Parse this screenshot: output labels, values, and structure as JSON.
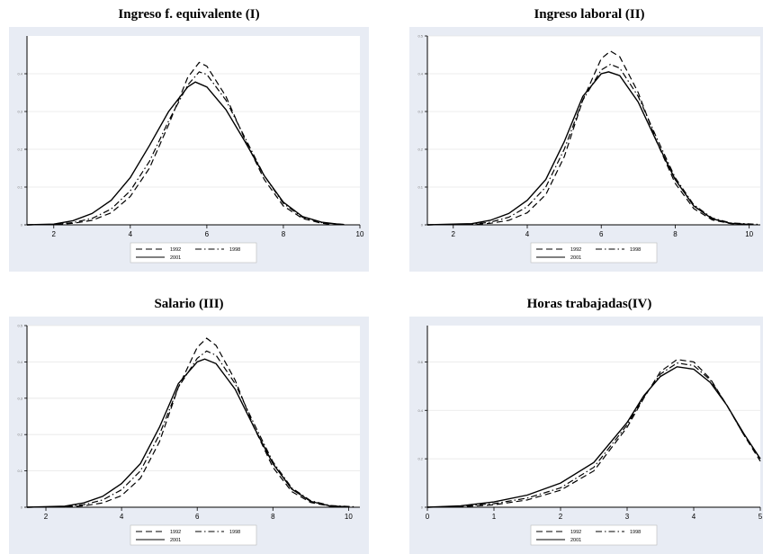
{
  "colors": {
    "panel": "#e8ecf4",
    "plot": "#ffffff",
    "line": "#000000"
  },
  "legend_labels": [
    "1992",
    "1998",
    "2001"
  ],
  "chart_data": [
    {
      "type": "line",
      "title": "Ingreso f. equivalente (I)",
      "xlim": [
        1.3,
        10
      ],
      "ylim": [
        0,
        0.5
      ],
      "xticks": [
        2,
        4,
        6,
        8,
        10
      ],
      "yticks": [
        0,
        0.1,
        0.2,
        0.3,
        0.4
      ],
      "series": [
        {
          "name": "1992",
          "dash": "dashed",
          "x": [
            1.3,
            2.0,
            2.5,
            3.0,
            3.5,
            4.0,
            4.5,
            5.0,
            5.5,
            5.8,
            6.0,
            6.5,
            7.0,
            7.5,
            8.0,
            8.5,
            9.0,
            9.3
          ],
          "y": [
            0,
            0.001,
            0.004,
            0.012,
            0.032,
            0.075,
            0.15,
            0.265,
            0.39,
            0.43,
            0.42,
            0.34,
            0.225,
            0.12,
            0.05,
            0.017,
            0.004,
            0.001
          ]
        },
        {
          "name": "1998",
          "dash": "dashdot",
          "x": [
            1.3,
            2.0,
            2.5,
            3.0,
            3.5,
            4.0,
            4.5,
            5.0,
            5.5,
            5.8,
            6.0,
            6.5,
            7.0,
            7.5,
            8.0,
            8.5,
            9.0,
            9.6
          ],
          "y": [
            0,
            0.001,
            0.006,
            0.017,
            0.042,
            0.09,
            0.168,
            0.275,
            0.37,
            0.405,
            0.398,
            0.33,
            0.23,
            0.13,
            0.057,
            0.02,
            0.006,
            0.001
          ]
        },
        {
          "name": "2001",
          "dash": "solid",
          "x": [
            1.3,
            2.0,
            2.5,
            3.0,
            3.5,
            4.0,
            4.5,
            5.0,
            5.5,
            5.7,
            6.0,
            6.5,
            7.0,
            7.5,
            8.0,
            8.5,
            9.0,
            9.5
          ],
          "y": [
            0,
            0.002,
            0.011,
            0.03,
            0.065,
            0.125,
            0.21,
            0.3,
            0.365,
            0.378,
            0.365,
            0.305,
            0.22,
            0.13,
            0.06,
            0.022,
            0.007,
            0.001
          ]
        }
      ]
    },
    {
      "type": "line",
      "title": "Ingreso laboral (II)",
      "xlim": [
        1.3,
        10.3
      ],
      "ylim": [
        0,
        0.5
      ],
      "xticks": [
        2,
        4,
        6,
        8,
        10
      ],
      "yticks": [
        0,
        0.1,
        0.2,
        0.3,
        0.4,
        0.5
      ],
      "series": [
        {
          "name": "1992",
          "dash": "dashed",
          "x": [
            1.3,
            2.5,
            3.0,
            3.5,
            4.0,
            4.5,
            5.0,
            5.5,
            6.0,
            6.25,
            6.5,
            7.0,
            7.5,
            8.0,
            8.5,
            9.0,
            9.5,
            10.0
          ],
          "y": [
            0,
            0.001,
            0.004,
            0.012,
            0.032,
            0.08,
            0.18,
            0.33,
            0.44,
            0.46,
            0.445,
            0.35,
            0.22,
            0.11,
            0.043,
            0.013,
            0.003,
            0.001
          ]
        },
        {
          "name": "1998",
          "dash": "dashdot",
          "x": [
            1.3,
            2.5,
            3.0,
            3.5,
            4.0,
            4.5,
            5.0,
            5.5,
            6.0,
            6.25,
            6.5,
            7.0,
            7.5,
            8.0,
            8.5,
            9.0,
            9.5,
            10.3
          ],
          "y": [
            0,
            0.002,
            0.007,
            0.02,
            0.048,
            0.1,
            0.2,
            0.33,
            0.41,
            0.425,
            0.415,
            0.34,
            0.23,
            0.125,
            0.053,
            0.018,
            0.005,
            0.001
          ]
        },
        {
          "name": "2001",
          "dash": "solid",
          "x": [
            1.3,
            2.5,
            3.0,
            3.5,
            4.0,
            4.5,
            5.0,
            5.5,
            6.0,
            6.2,
            6.5,
            7.0,
            7.5,
            8.0,
            8.5,
            9.0,
            9.5,
            10.0
          ],
          "y": [
            0,
            0.003,
            0.012,
            0.03,
            0.065,
            0.12,
            0.22,
            0.34,
            0.4,
            0.405,
            0.395,
            0.325,
            0.22,
            0.12,
            0.05,
            0.016,
            0.004,
            0.001
          ]
        }
      ]
    },
    {
      "type": "line",
      "title": "Salario (III)",
      "xlim": [
        1.5,
        10.3
      ],
      "ylim": [
        0,
        0.5
      ],
      "xticks": [
        2,
        4,
        6,
        8,
        10
      ],
      "yticks": [
        0,
        0.1,
        0.2,
        0.3,
        0.4,
        0.5
      ],
      "series": [
        {
          "name": "1992",
          "dash": "dashed",
          "x": [
            1.5,
            2.5,
            3.0,
            3.5,
            4.0,
            4.5,
            5.0,
            5.5,
            6.0,
            6.25,
            6.5,
            7.0,
            7.5,
            8.0,
            8.5,
            9.0,
            9.5,
            10.0
          ],
          "y": [
            0,
            0.001,
            0.004,
            0.012,
            0.032,
            0.08,
            0.18,
            0.33,
            0.44,
            0.465,
            0.445,
            0.35,
            0.22,
            0.11,
            0.043,
            0.013,
            0.003,
            0.001
          ]
        },
        {
          "name": "1998",
          "dash": "dashdot",
          "x": [
            1.5,
            2.5,
            3.0,
            3.5,
            4.0,
            4.5,
            5.0,
            5.5,
            6.0,
            6.25,
            6.5,
            7.0,
            7.5,
            8.0,
            8.5,
            9.0,
            9.5,
            10.2
          ],
          "y": [
            0,
            0.002,
            0.007,
            0.02,
            0.048,
            0.1,
            0.2,
            0.33,
            0.41,
            0.43,
            0.418,
            0.34,
            0.23,
            0.125,
            0.053,
            0.018,
            0.005,
            0.001
          ]
        },
        {
          "name": "2001",
          "dash": "solid",
          "x": [
            1.5,
            2.5,
            3.0,
            3.5,
            4.0,
            4.5,
            5.0,
            5.5,
            6.0,
            6.2,
            6.5,
            7.0,
            7.5,
            8.0,
            8.5,
            9.0,
            9.5,
            10.0
          ],
          "y": [
            0,
            0.003,
            0.012,
            0.03,
            0.065,
            0.12,
            0.22,
            0.34,
            0.4,
            0.408,
            0.395,
            0.325,
            0.22,
            0.12,
            0.05,
            0.016,
            0.004,
            0.001
          ]
        }
      ]
    },
    {
      "type": "line",
      "title": "Horas trabajadas(IV)",
      "xlim": [
        0,
        5
      ],
      "ylim": [
        0,
        0.75
      ],
      "xticks": [
        0,
        1,
        2,
        3,
        4,
        5
      ],
      "yticks": [
        0,
        0.2,
        0.4,
        0.6
      ],
      "series": [
        {
          "name": "1992",
          "dash": "dashed",
          "x": [
            0,
            0.5,
            1.0,
            1.5,
            2.0,
            2.5,
            3.0,
            3.25,
            3.5,
            3.75,
            4.0,
            4.25,
            4.5,
            4.75,
            5.0
          ],
          "y": [
            0,
            0.002,
            0.01,
            0.03,
            0.07,
            0.15,
            0.33,
            0.45,
            0.56,
            0.61,
            0.6,
            0.53,
            0.42,
            0.3,
            0.19
          ]
        },
        {
          "name": "1998",
          "dash": "dashdot",
          "x": [
            0,
            0.5,
            1.0,
            1.5,
            2.0,
            2.5,
            3.0,
            3.25,
            3.5,
            3.75,
            4.0,
            4.25,
            4.5,
            4.75,
            5.0
          ],
          "y": [
            0,
            0.004,
            0.015,
            0.038,
            0.08,
            0.165,
            0.34,
            0.455,
            0.55,
            0.595,
            0.585,
            0.525,
            0.42,
            0.3,
            0.2
          ]
        },
        {
          "name": "2001",
          "dash": "solid",
          "x": [
            0,
            0.5,
            1.0,
            1.5,
            2.0,
            2.5,
            3.0,
            3.25,
            3.5,
            3.75,
            4.0,
            4.25,
            4.5,
            4.75,
            5.0
          ],
          "y": [
            0,
            0.006,
            0.022,
            0.05,
            0.1,
            0.185,
            0.35,
            0.46,
            0.54,
            0.58,
            0.57,
            0.515,
            0.42,
            0.305,
            0.2
          ]
        }
      ]
    }
  ]
}
